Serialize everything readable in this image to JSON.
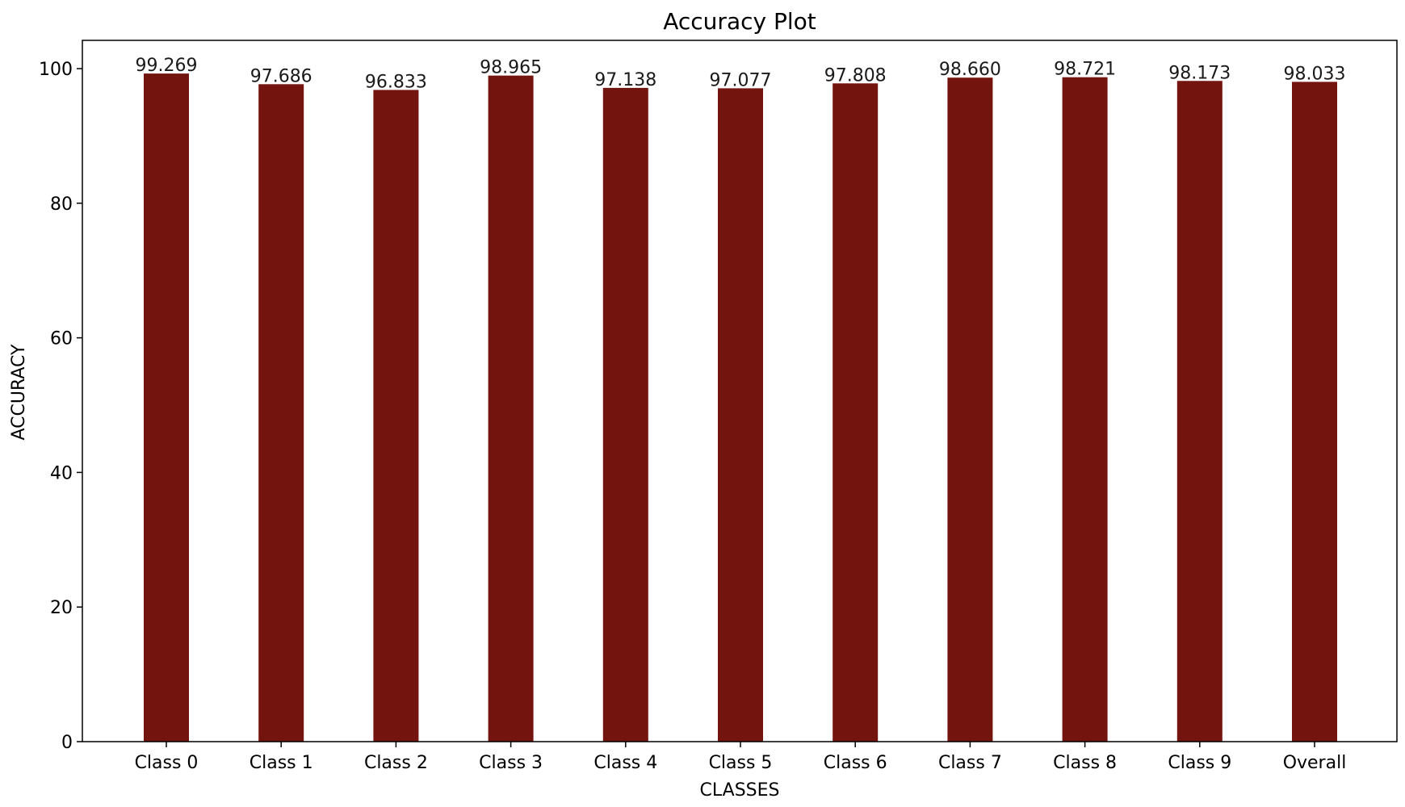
{
  "chart_data": {
    "type": "bar",
    "title": "Accuracy Plot",
    "xlabel": "CLASSES",
    "ylabel": "ACCURACY",
    "categories": [
      "Class 0",
      "Class 1",
      "Class 2",
      "Class 3",
      "Class 4",
      "Class 5",
      "Class 6",
      "Class 7",
      "Class 8",
      "Class 9",
      "Overall"
    ],
    "values": [
      99.269,
      97.686,
      96.833,
      98.965,
      97.138,
      97.077,
      97.808,
      98.66,
      98.721,
      98.173,
      98.033
    ],
    "data_labels": [
      "99.269",
      "97.686",
      "96.833",
      "98.965",
      "97.138",
      "97.077",
      "97.808",
      "98.660",
      "98.721",
      "98.173",
      "98.033"
    ],
    "ylim": [
      0,
      104.2
    ],
    "yticks": [
      0,
      20,
      40,
      60,
      80,
      100
    ],
    "grid": false,
    "bar_color": "#74140f"
  }
}
